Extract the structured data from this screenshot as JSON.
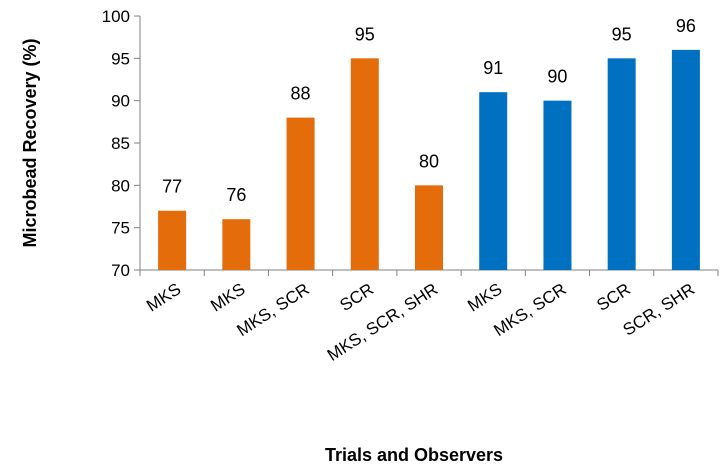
{
  "chart_data": {
    "type": "bar",
    "title": "",
    "xlabel": "Trials and Observers",
    "ylabel": "Microbead Recovery (%)",
    "ylim": [
      70,
      100
    ],
    "yticks": [
      70,
      75,
      80,
      85,
      90,
      95,
      100
    ],
    "grid": false,
    "categories": [
      "MKS",
      "MKS",
      "MKS, SCR",
      "SCR",
      "MKS, SCR, SHR",
      "MKS",
      "MKS, SCR",
      "SCR",
      "SCR, SHR"
    ],
    "values": [
      77,
      76,
      88,
      95,
      80,
      91,
      90,
      95,
      96
    ],
    "bar_colors": [
      "#E46C0A",
      "#E46C0A",
      "#E46C0A",
      "#E46C0A",
      "#E46C0A",
      "#0070C0",
      "#0070C0",
      "#0070C0",
      "#0070C0"
    ]
  }
}
